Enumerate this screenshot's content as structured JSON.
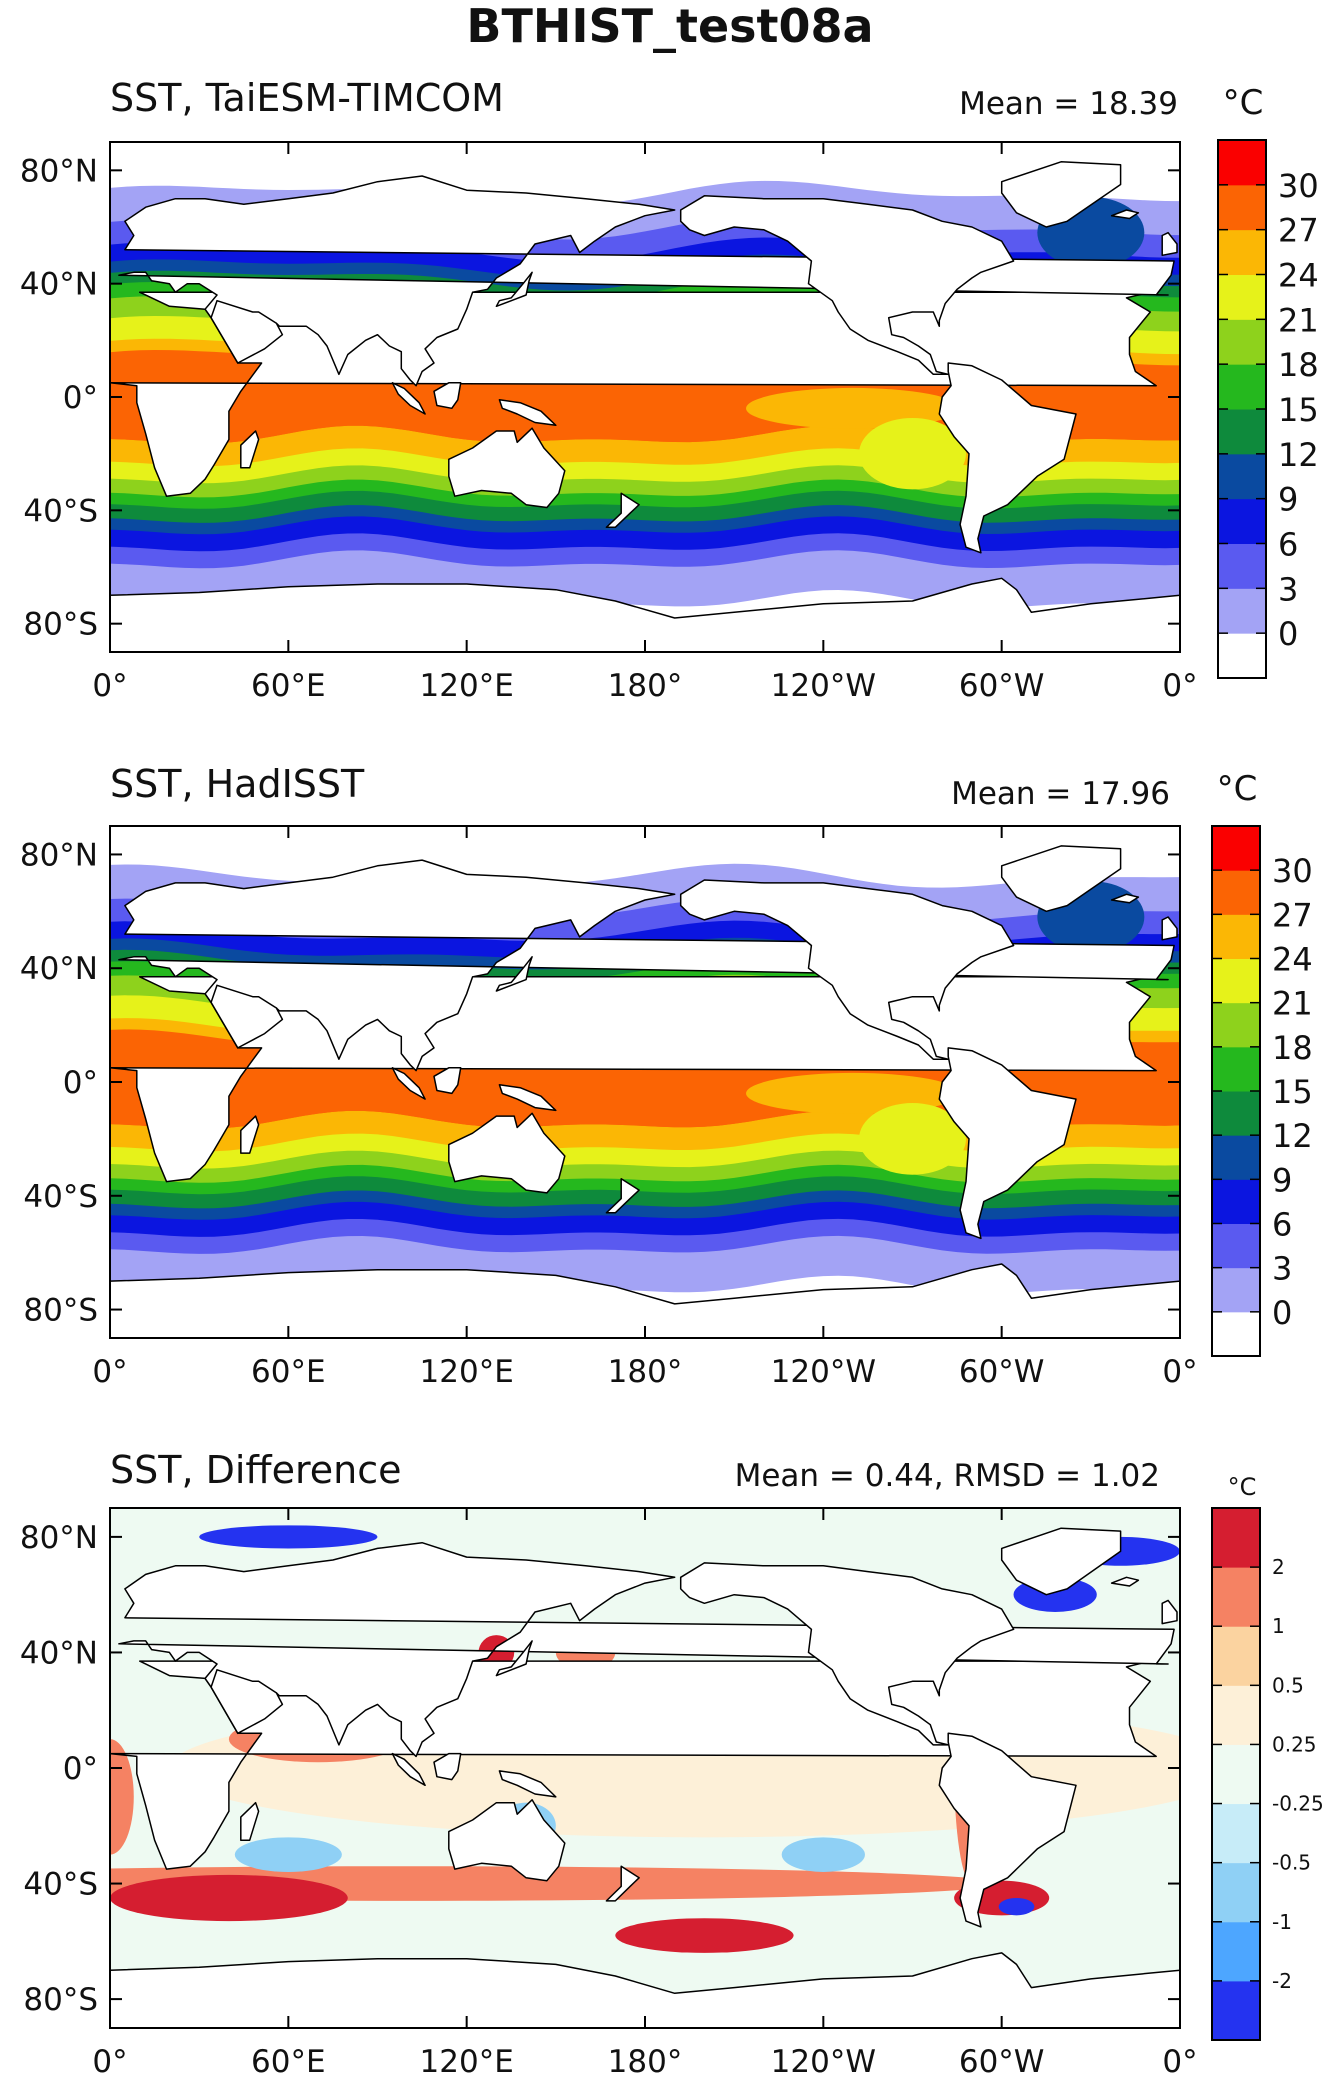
{
  "figure": {
    "title": "BTHIST_test08a"
  },
  "colors": {
    "sst_levels": [
      "#ffffff",
      "#a3a3f5",
      "#5a5af0",
      "#0b15e0",
      "#0a4aa0",
      "#0e8a3c",
      "#25b81e",
      "#8ed21c",
      "#e6f21a",
      "#fbb705",
      "#fb6404",
      "#fa0000"
    ],
    "diff_levels": [
      "#2433f0",
      "#4da6ff",
      "#8fd0f5",
      "#c7ecf8",
      "#eefaf2",
      "#fdf0d8",
      "#fbd3a0",
      "#f58263",
      "#d51e30"
    ],
    "land": "#ffffff",
    "coast": "#000000"
  },
  "chart_data": [
    {
      "type": "heatmap",
      "name": "panel-model",
      "title": "SST, TaiESM-TIMCOM",
      "mean_label": "Mean = 18.39",
      "unit": "°C",
      "x_ticks": [
        "0°",
        "60°E",
        "120°E",
        "180°",
        "120°W",
        "60°W",
        "0°"
      ],
      "y_ticks": [
        "80°N",
        "40°N",
        "0°",
        "40°S",
        "80°S"
      ],
      "colorbar_labels": [
        "0",
        "3",
        "6",
        "9",
        "12",
        "15",
        "18",
        "21",
        "24",
        "27",
        "30"
      ],
      "colorbar_values": [
        0,
        3,
        6,
        9,
        12,
        15,
        18,
        21,
        24,
        27,
        30
      ],
      "xlim": [
        0,
        360
      ],
      "ylim": [
        -90,
        90
      ]
    },
    {
      "type": "heatmap",
      "name": "panel-obs",
      "title": "SST, HadISST",
      "mean_label": "Mean = 17.96",
      "unit": "°C",
      "x_ticks": [
        "0°",
        "60°E",
        "120°E",
        "180°",
        "120°W",
        "60°W",
        "0°"
      ],
      "y_ticks": [
        "80°N",
        "40°N",
        "0°",
        "40°S",
        "80°S"
      ],
      "colorbar_labels": [
        "0",
        "3",
        "6",
        "9",
        "12",
        "15",
        "18",
        "21",
        "24",
        "27",
        "30"
      ],
      "colorbar_values": [
        0,
        3,
        6,
        9,
        12,
        15,
        18,
        21,
        24,
        27,
        30
      ],
      "xlim": [
        0,
        360
      ],
      "ylim": [
        -90,
        90
      ]
    },
    {
      "type": "heatmap",
      "name": "panel-diff",
      "title": "SST, Difference",
      "mean_label": "Mean = 0.44, RMSD = 1.02",
      "unit": "°C",
      "x_ticks": [
        "0°",
        "60°E",
        "120°E",
        "180°",
        "120°W",
        "60°W",
        "0°"
      ],
      "y_ticks": [
        "80°N",
        "40°N",
        "0°",
        "40°S",
        "80°S"
      ],
      "colorbar_labels": [
        "-2",
        "-1",
        "-0.5",
        "-0.25",
        "0.25",
        "0.5",
        "1",
        "2"
      ],
      "colorbar_values": [
        -2,
        -1,
        -0.5,
        -0.25,
        0.25,
        0.5,
        1,
        2
      ],
      "xlim": [
        0,
        360
      ],
      "ylim": [
        -90,
        90
      ]
    }
  ]
}
